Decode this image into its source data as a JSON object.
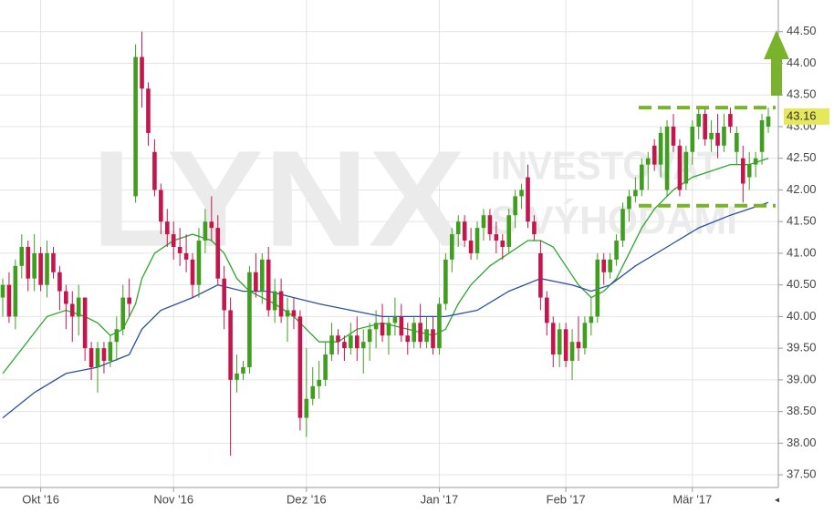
{
  "chart_data": {
    "type": "candlestick",
    "categories": [
      null,
      null,
      null,
      null,
      null,
      null,
      "Okt '16",
      null,
      null,
      null,
      null,
      null,
      null,
      null,
      null,
      null,
      null,
      null,
      null,
      null,
      null,
      null,
      null,
      null,
      null,
      null,
      null,
      "Nov '16",
      null,
      null,
      null,
      null,
      null,
      null,
      null,
      null,
      null,
      null,
      null,
      null,
      null,
      null,
      null,
      null,
      null,
      null,
      null,
      null,
      "Dez '16",
      null,
      null,
      null,
      null,
      null,
      null,
      null,
      null,
      null,
      null,
      null,
      null,
      null,
      null,
      null,
      null,
      null,
      null,
      null,
      null,
      "Jan '17",
      null,
      null,
      null,
      null,
      null,
      null,
      null,
      null,
      null,
      null,
      null,
      null,
      null,
      null,
      null,
      null,
      null,
      null,
      null,
      "Feb '17",
      null,
      null,
      null,
      null,
      null,
      null,
      null,
      null,
      null,
      null,
      null,
      null,
      null,
      null,
      null,
      null,
      null,
      null,
      null,
      "Mär '17",
      null,
      null,
      null,
      null,
      null,
      null,
      null,
      null,
      null,
      null,
      null,
      null
    ],
    "open": [
      40.3,
      40.5,
      40.0,
      40.8,
      41.1,
      40.6,
      41.0,
      40.5,
      41.0,
      40.7,
      40.4,
      40.2,
      40.0,
      40.3,
      39.5,
      39.2,
      39.5,
      39.3,
      39.6,
      39.8,
      40.3,
      41.9,
      44.1,
      43.6,
      42.6,
      42.0,
      41.5,
      41.3,
      41.1,
      41.0,
      40.9,
      40.5,
      41.2,
      41.5,
      41.4,
      40.6,
      40.1,
      39.0,
      39.1,
      39.2,
      40.7,
      40.4,
      40.9,
      40.1,
      40.4,
      40.0,
      40.1,
      40.0,
      38.4,
      38.7,
      38.9,
      39.0,
      39.4,
      39.7,
      39.6,
      39.5,
      39.7,
      39.5,
      39.6,
      39.8,
      39.9,
      39.7,
      39.9,
      40.0,
      39.7,
      39.6,
      39.9,
      39.6,
      39.8,
      39.5,
      40.2,
      40.9,
      41.3,
      41.5,
      41.2,
      41.0,
      41.4,
      41.6,
      41.3,
      41.2,
      41.1,
      41.6,
      41.9,
      42.2,
      41.5,
      41.0,
      40.3,
      39.9,
      39.4,
      39.8,
      39.3,
      39.6,
      39.5,
      39.9,
      40.0,
      40.9,
      40.7,
      40.9,
      41.2,
      41.7,
      41.9,
      42.0,
      42.4,
      42.7,
      42.4,
      42.0,
      43.0,
      42.7,
      42.1,
      42.6,
      43.0,
      43.2,
      42.8,
      42.9,
      42.7,
      43.2,
      42.6,
      42.5,
      42.2,
      42.4,
      42.6,
      43.0
    ],
    "high": [
      40.6,
      40.7,
      40.9,
      41.3,
      41.2,
      41.3,
      41.1,
      41.2,
      41.1,
      40.8,
      40.5,
      40.4,
      40.5,
      40.3,
      39.6,
      39.6,
      39.6,
      39.7,
      40.0,
      40.5,
      40.6,
      44.3,
      44.5,
      43.7,
      42.8,
      42.1,
      41.7,
      41.5,
      41.4,
      41.3,
      41.0,
      41.4,
      41.7,
      41.9,
      41.6,
      40.8,
      40.3,
      39.4,
      39.3,
      40.8,
      41.0,
      41.0,
      41.1,
      40.6,
      40.6,
      40.3,
      40.3,
      40.1,
      39.5,
      39.2,
      39.3,
      39.6,
      39.9,
      39.8,
      39.7,
      39.9,
      40.0,
      39.8,
      39.9,
      40.1,
      40.2,
      40.0,
      40.3,
      40.2,
      39.9,
      40.0,
      40.2,
      40.0,
      40.0,
      40.3,
      41.0,
      41.4,
      41.6,
      41.6,
      41.4,
      41.5,
      41.7,
      41.7,
      41.5,
      41.3,
      41.7,
      42.0,
      42.1,
      42.4,
      41.6,
      41.2,
      40.4,
      40.0,
      39.9,
      39.9,
      39.8,
      40.0,
      40.0,
      40.3,
      41.0,
      41.0,
      41.0,
      41.3,
      41.8,
      42.0,
      42.2,
      42.5,
      42.6,
      42.8,
      43.0,
      43.1,
      43.2,
      42.8,
      42.7,
      43.1,
      43.3,
      43.3,
      43.1,
      43.2,
      43.2,
      43.3,
      43.0,
      42.7,
      42.6,
      42.6,
      43.2,
      43.3
    ],
    "low": [
      40.0,
      39.9,
      39.8,
      40.6,
      40.4,
      40.4,
      40.4,
      40.3,
      40.6,
      40.1,
      39.8,
      39.6,
      39.7,
      39.3,
      39.0,
      38.8,
      39.1,
      39.2,
      39.3,
      39.7,
      40.0,
      41.8,
      43.3,
      42.7,
      41.9,
      41.3,
      41.1,
      40.9,
      40.8,
      40.7,
      40.3,
      40.3,
      41.0,
      41.2,
      40.5,
      39.8,
      37.8,
      38.8,
      39.0,
      39.1,
      40.3,
      40.2,
      40.0,
      39.9,
      39.9,
      39.6,
      39.8,
      38.2,
      38.1,
      38.6,
      38.7,
      38.9,
      39.3,
      39.4,
      39.3,
      39.4,
      39.3,
      39.1,
      39.3,
      39.5,
      39.6,
      39.4,
      39.7,
      39.6,
      39.4,
      39.5,
      39.5,
      39.5,
      39.4,
      39.4,
      40.1,
      40.7,
      41.1,
      41.1,
      40.9,
      40.9,
      41.2,
      41.2,
      41.0,
      40.9,
      41.0,
      41.4,
      41.7,
      41.4,
      41.2,
      40.1,
      39.7,
      39.2,
      39.2,
      39.2,
      39.0,
      39.3,
      39.4,
      39.7,
      39.9,
      40.5,
      40.6,
      40.8,
      41.1,
      41.5,
      41.8,
      41.9,
      42.0,
      42.3,
      42.2,
      41.9,
      42.6,
      41.9,
      42.0,
      42.4,
      42.8,
      42.7,
      42.6,
      42.5,
      42.6,
      42.9,
      42.4,
      41.8,
      42.0,
      42.2,
      42.4,
      42.9
    ],
    "close": [
      40.5,
      40.0,
      40.8,
      41.1,
      40.6,
      41.0,
      40.5,
      41.0,
      40.7,
      40.4,
      40.2,
      40.0,
      40.3,
      39.5,
      39.2,
      39.5,
      39.3,
      39.6,
      39.8,
      40.3,
      40.2,
      44.1,
      43.6,
      42.9,
      42.0,
      41.5,
      41.3,
      41.1,
      41.0,
      40.9,
      40.5,
      41.2,
      41.5,
      41.4,
      40.6,
      40.1,
      39.0,
      39.1,
      39.2,
      40.7,
      40.4,
      40.9,
      40.1,
      40.4,
      40.0,
      40.1,
      40.0,
      38.4,
      38.7,
      38.9,
      39.0,
      39.4,
      39.7,
      39.6,
      39.5,
      39.7,
      39.5,
      39.6,
      39.8,
      39.9,
      39.7,
      39.9,
      40.0,
      39.7,
      39.6,
      39.9,
      39.6,
      39.8,
      39.5,
      40.2,
      40.9,
      41.3,
      41.5,
      41.2,
      41.0,
      41.4,
      41.6,
      41.3,
      41.2,
      41.1,
      41.6,
      41.9,
      42.0,
      41.5,
      41.3,
      40.3,
      39.9,
      39.4,
      39.8,
      39.3,
      39.6,
      39.5,
      39.9,
      40.0,
      40.9,
      40.7,
      40.9,
      41.2,
      41.7,
      41.9,
      42.0,
      42.4,
      42.5,
      42.4,
      42.9,
      43.0,
      42.7,
      42.0,
      42.6,
      43.0,
      43.2,
      42.8,
      42.9,
      42.7,
      43.0,
      43.0,
      42.9,
      42.1,
      42.4,
      42.5,
      43.1,
      43.16
    ],
    "up_color": "#3f9e1f",
    "down_color": "#c4154c",
    "series": [
      {
        "color": "#2ea62e",
        "x": [
          0,
          7,
          10,
          13,
          15,
          17,
          19,
          21,
          22,
          24,
          27,
          30,
          33,
          35,
          37,
          39,
          41,
          43,
          46,
          48,
          50,
          53,
          56,
          60,
          64,
          68,
          70,
          72,
          74,
          77,
          80,
          83,
          85,
          87,
          89,
          91,
          93,
          95,
          97,
          99,
          101,
          103,
          106,
          109,
          112,
          115,
          118,
          121
        ],
        "values": [
          39.1,
          40.0,
          40.1,
          40.0,
          39.9,
          39.7,
          39.8,
          40.2,
          40.6,
          41.0,
          41.2,
          41.3,
          41.2,
          41.0,
          40.6,
          40.4,
          40.3,
          40.2,
          40.0,
          39.8,
          39.6,
          39.6,
          39.8,
          39.9,
          39.8,
          39.7,
          39.8,
          40.2,
          40.5,
          40.8,
          41.0,
          41.2,
          41.2,
          41.1,
          40.8,
          40.5,
          40.3,
          40.4,
          40.6,
          41.0,
          41.4,
          41.7,
          42.0,
          42.2,
          42.3,
          42.4,
          42.4,
          42.5
        ]
      },
      {
        "color": "#2b4fa0",
        "x": [
          0,
          5,
          10,
          15,
          20,
          22,
          25,
          30,
          34,
          38,
          42,
          46,
          50,
          55,
          60,
          65,
          70,
          75,
          80,
          85,
          90,
          93,
          96,
          100,
          105,
          110,
          115,
          121
        ],
        "values": [
          38.4,
          38.8,
          39.1,
          39.2,
          39.4,
          39.8,
          40.1,
          40.3,
          40.5,
          40.4,
          40.4,
          40.3,
          40.2,
          40.1,
          40.0,
          40.0,
          40.0,
          40.1,
          40.4,
          40.6,
          40.5,
          40.4,
          40.5,
          40.8,
          41.1,
          41.4,
          41.6,
          41.8
        ]
      }
    ],
    "levels": [
      43.3,
      41.75
    ],
    "level_color": "#79b32c",
    "last_label": "43.16",
    "watermark": [
      "LYNX",
      "INVESTOVAT",
      "S VÝHODAMI"
    ],
    "ylim": [
      37.3,
      45.0
    ],
    "yticks": [
      {
        "value": 37.5,
        "label": "37.50"
      },
      {
        "value": 38,
        "label": "38.00"
      },
      {
        "value": 38.5,
        "label": "38.50"
      },
      {
        "value": 39,
        "label": "39.00"
      },
      {
        "value": 39.5,
        "label": "39.50"
      },
      {
        "value": 40,
        "label": "40.00"
      },
      {
        "value": 40.5,
        "label": "40.50"
      },
      {
        "value": 41,
        "label": "41.00"
      },
      {
        "value": 41.5,
        "label": "41.50"
      },
      {
        "value": 42,
        "label": "42.00"
      },
      {
        "value": 42.5,
        "label": "42.50"
      },
      {
        "value": 43,
        "label": "43.00"
      },
      {
        "value": 43.5,
        "label": "43.50"
      },
      {
        "value": 44,
        "label": "44.00"
      },
      {
        "value": 44.5,
        "label": "44.50"
      }
    ],
    "grid": true
  }
}
